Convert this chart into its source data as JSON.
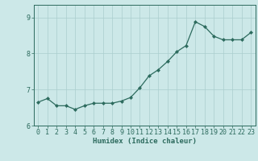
{
  "x": [
    0,
    1,
    2,
    3,
    4,
    5,
    6,
    7,
    8,
    9,
    10,
    11,
    12,
    13,
    14,
    15,
    16,
    17,
    18,
    19,
    20,
    21,
    22,
    23
  ],
  "y": [
    6.65,
    6.75,
    6.55,
    6.55,
    6.45,
    6.55,
    6.62,
    6.62,
    6.62,
    6.68,
    6.78,
    7.05,
    7.38,
    7.55,
    7.78,
    8.05,
    8.22,
    8.88,
    8.75,
    8.48,
    8.38,
    8.38,
    8.38,
    8.58
  ],
  "line_color": "#2d6b5e",
  "marker": "D",
  "marker_size": 2.0,
  "bg_color": "#cce8e8",
  "grid_color": "#aacece",
  "xlabel": "Humidex (Indice chaleur)",
  "ylim": [
    6.0,
    9.35
  ],
  "xlim": [
    -0.5,
    23.5
  ],
  "yticks": [
    6,
    7,
    8,
    9
  ],
  "xticks": [
    0,
    1,
    2,
    3,
    4,
    5,
    6,
    7,
    8,
    9,
    10,
    11,
    12,
    13,
    14,
    15,
    16,
    17,
    18,
    19,
    20,
    21,
    22,
    23
  ],
  "xlabel_fontsize": 6.5,
  "tick_fontsize": 6.0,
  "tick_color": "#2d6b5e",
  "axis_color": "#2d6b5e",
  "linewidth": 0.9
}
